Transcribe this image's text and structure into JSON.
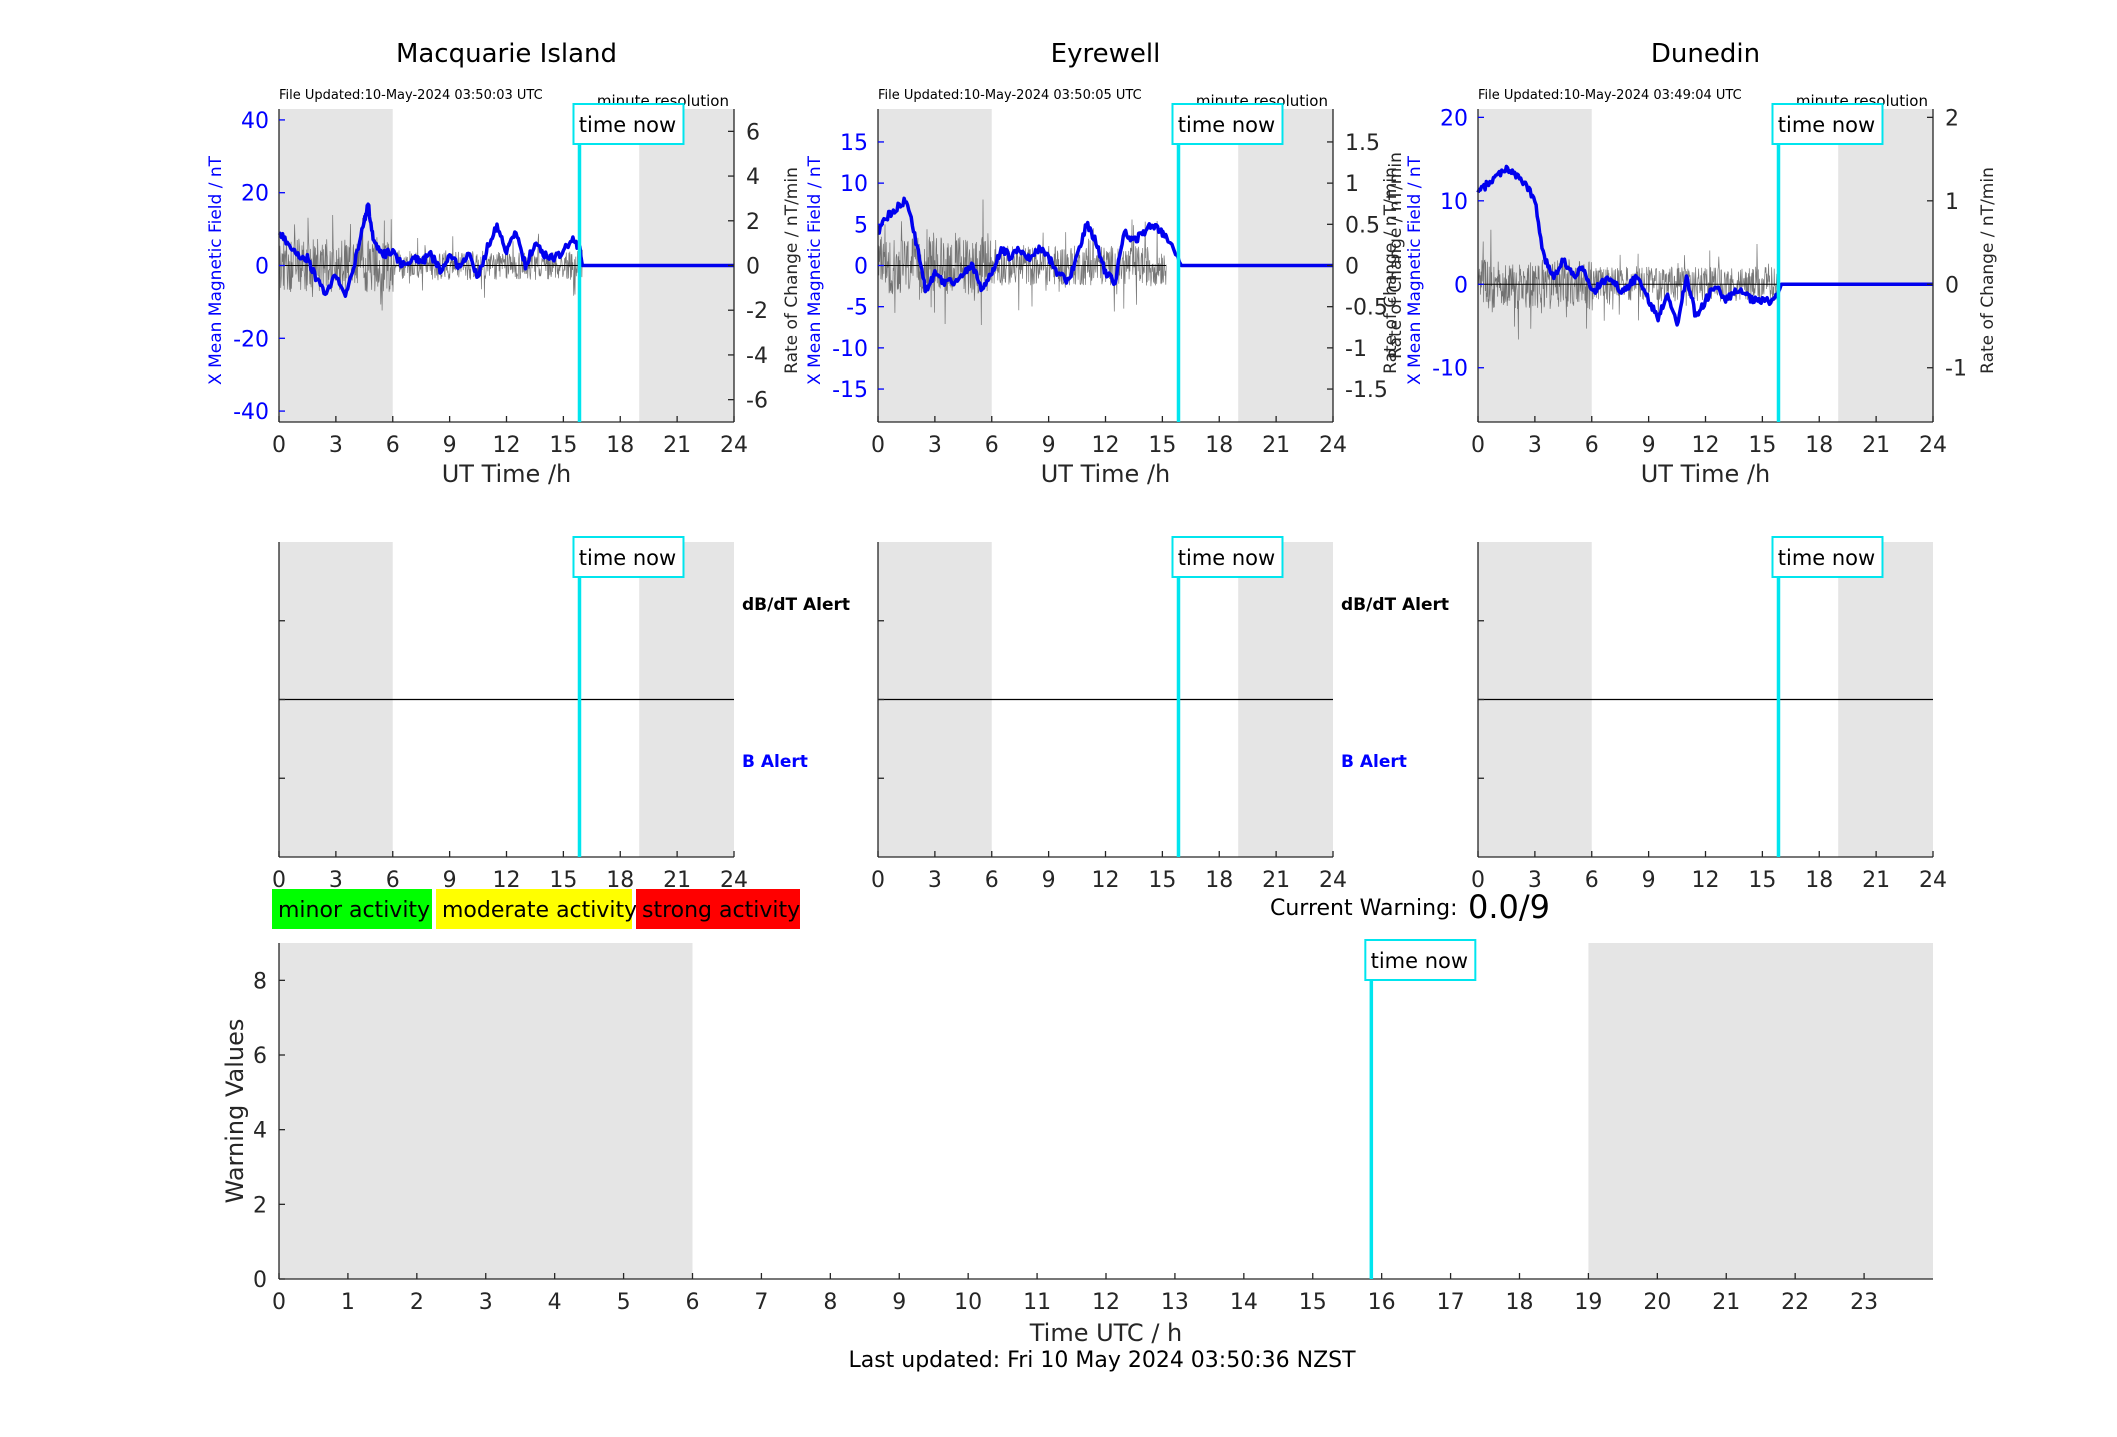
{
  "chart_data": [
    {
      "type": "line",
      "station": "Macquarie Island",
      "file_updated": "File Updated:10-May-2024 03:50:03 UTC",
      "resolution": "minute resolution",
      "xlabel": "UT Time /h",
      "ylabel_left": "X Mean Magnetic Field / nT",
      "ylabel_right": "Rate of Change / nT/min",
      "xlim": [
        0,
        24
      ],
      "xticks": [
        0,
        3,
        6,
        9,
        12,
        15,
        18,
        21,
        24
      ],
      "ylim_left": [
        -43,
        43
      ],
      "yticks_left": [
        -40,
        -20,
        0,
        20,
        40
      ],
      "ylim_right": [
        -7,
        7
      ],
      "yticks_right": [
        -6,
        -4,
        -2,
        0,
        2,
        4,
        6
      ],
      "night_shading": [
        [
          0,
          6
        ],
        [
          19,
          24
        ]
      ],
      "time_now": 15.85,
      "time_now_label": "time now",
      "series": [
        {
          "name": "X Mean Magnetic Field",
          "axis": "left",
          "x": [
            0,
            0.5,
            1,
            1.5,
            2,
            2.5,
            3,
            3.5,
            4,
            4.5,
            4.7,
            5,
            5.5,
            6,
            6.5,
            7,
            7.5,
            8,
            8.5,
            9,
            9.5,
            10,
            10.5,
            11,
            11.5,
            12,
            12.5,
            13,
            13.5,
            14,
            14.5,
            15,
            15.5,
            15.85,
            16,
            24
          ],
          "y": [
            9,
            6,
            3,
            2,
            -4,
            -8,
            -2,
            -9,
            1,
            12,
            17,
            6,
            3,
            4,
            0,
            2,
            1,
            3,
            -1,
            2,
            0,
            3,
            -3,
            5,
            11,
            4,
            9,
            0,
            6,
            3,
            2,
            4,
            7,
            5,
            0,
            0
          ]
        },
        {
          "name": "Rate of Change",
          "axis": "right",
          "style": "thin-gray-noise",
          "x0": 0,
          "x1": 16,
          "amplitude": 1.2
        }
      ]
    },
    {
      "type": "line",
      "station": "Eyrewell",
      "file_updated": "File Updated:10-May-2024 03:50:05 UTC",
      "resolution": "minute resolution",
      "xlabel": "UT Time /h",
      "ylabel_left": "X Mean Magnetic Field / nT",
      "ylabel_right": "Rate of Change / nT/min",
      "xlim": [
        0,
        24
      ],
      "xticks": [
        0,
        3,
        6,
        9,
        12,
        15,
        18,
        21,
        24
      ],
      "ylim_left": [
        -19,
        19
      ],
      "yticks_left": [
        -15,
        -10,
        -5,
        0,
        5,
        10,
        15
      ],
      "ylim_right": [
        -1.9,
        1.9
      ],
      "yticks_right": [
        -1.5,
        -1,
        -0.5,
        0,
        0.5,
        1,
        1.5
      ],
      "night_shading": [
        [
          0,
          6
        ],
        [
          19,
          24
        ]
      ],
      "time_now": 15.85,
      "time_now_label": "time now",
      "series": [
        {
          "name": "X Mean Magnetic Field",
          "axis": "left",
          "x": [
            0,
            0.5,
            1,
            1.5,
            2,
            2.5,
            3,
            3.5,
            4,
            4.5,
            5,
            5.5,
            6,
            6.5,
            7,
            7.5,
            8,
            8.5,
            9,
            9.5,
            10,
            10.5,
            11,
            11.5,
            12,
            12.5,
            13,
            13.5,
            14,
            14.5,
            15,
            15.2,
            16,
            24
          ],
          "y": [
            4,
            6,
            7,
            8,
            3,
            -3,
            -1,
            -2,
            -2,
            -1,
            0,
            -3,
            -1,
            2,
            1,
            2,
            1,
            2,
            1,
            -1,
            -2,
            1,
            5,
            3,
            -1,
            -2,
            4,
            3,
            4,
            5,
            4,
            3.5,
            0,
            0
          ]
        },
        {
          "name": "Rate of Change",
          "axis": "right",
          "style": "thin-gray-noise",
          "x0": 0,
          "x1": 15.2,
          "amplitude": 0.35
        }
      ]
    },
    {
      "type": "line",
      "station": "Dunedin",
      "file_updated": "File Updated:10-May-2024 03:49:04 UTC",
      "resolution": "minute resolution",
      "xlabel": "UT Time /h",
      "ylabel_left": "X Mean Magnetic Field / nT",
      "ylabel_right": "Rate of Change / nT/min",
      "xlim": [
        0,
        24
      ],
      "xticks": [
        0,
        3,
        6,
        9,
        12,
        15,
        18,
        21,
        24
      ],
      "ylim_left": [
        -16.5,
        21
      ],
      "yticks_left": [
        -10,
        0,
        10,
        20
      ],
      "ylim_right": [
        -1.65,
        2.1
      ],
      "yticks_right": [
        -1,
        0,
        1,
        2
      ],
      "night_shading": [
        [
          0,
          6
        ],
        [
          19,
          24
        ]
      ],
      "time_now": 15.85,
      "time_now_label": "time now",
      "series": [
        {
          "name": "X Mean Magnetic Field",
          "axis": "left",
          "x": [
            0,
            0.5,
            1,
            1.5,
            2,
            2.5,
            3,
            3.5,
            4,
            4.5,
            5,
            5.5,
            6,
            6.5,
            7,
            7.5,
            8,
            8.5,
            9,
            9.5,
            10,
            10.5,
            11,
            11.5,
            12,
            12.5,
            13,
            13.5,
            14,
            14.5,
            15,
            15.5,
            15.85,
            16,
            24
          ],
          "y": [
            11,
            12,
            13,
            14,
            13,
            12,
            10,
            3,
            1,
            3,
            1,
            2,
            -1,
            0,
            1,
            -1,
            0,
            1,
            -2,
            -4,
            -1,
            -5,
            1,
            -4,
            -2,
            0,
            -2,
            -1,
            -1,
            -2,
            -2,
            -2,
            -1,
            0,
            0
          ]
        },
        {
          "name": "Rate of Change",
          "axis": "right",
          "style": "thin-gray-noise",
          "x0": 0,
          "x1": 15.85,
          "amplitude": 0.3
        }
      ]
    },
    {
      "type": "line",
      "station": "Macquarie Island alerts",
      "xlim": [
        0,
        24
      ],
      "xticks": [
        0,
        3,
        6,
        9,
        12,
        15,
        18,
        21,
        24
      ],
      "night_shading": [
        [
          0,
          6
        ],
        [
          19,
          24
        ]
      ],
      "time_now": 15.85,
      "time_now_label": "time now",
      "labels": [
        "dB/dT Alert",
        "B Alert"
      ]
    },
    {
      "type": "line",
      "station": "Eyrewell alerts",
      "xlim": [
        0,
        24
      ],
      "xticks": [
        0,
        3,
        6,
        9,
        12,
        15,
        18,
        21,
        24
      ],
      "night_shading": [
        [
          0,
          6
        ],
        [
          19,
          24
        ]
      ],
      "time_now": 15.85,
      "time_now_label": "time now",
      "labels": [
        "dB/dT Alert",
        "B Alert"
      ]
    },
    {
      "type": "line",
      "station": "Dunedin alerts",
      "xlim": [
        0,
        24
      ],
      "xticks": [
        0,
        3,
        6,
        9,
        12,
        15,
        18,
        21,
        24
      ],
      "night_shading": [
        [
          0,
          6
        ],
        [
          19,
          24
        ]
      ],
      "time_now": 15.85,
      "time_now_label": "time now",
      "labels": []
    },
    {
      "type": "bar",
      "xlabel": "Time UTC / h",
      "ylabel": "Warning Values",
      "xlim": [
        0,
        24
      ],
      "xticks": [
        0,
        1,
        2,
        3,
        4,
        5,
        6,
        7,
        8,
        9,
        10,
        11,
        12,
        13,
        14,
        15,
        16,
        17,
        18,
        19,
        20,
        21,
        22,
        23
      ],
      "ylim": [
        0,
        9
      ],
      "yticks": [
        0,
        2,
        4,
        6,
        8
      ],
      "night_shading": [
        [
          0,
          6
        ],
        [
          19,
          24
        ]
      ],
      "time_now": 15.85,
      "time_now_label": "time now",
      "values": []
    }
  ],
  "legend": {
    "items": [
      {
        "label": "minor activity",
        "color": "#00ff00"
      },
      {
        "label": "moderate activity",
        "color": "#ffff00"
      },
      {
        "label": "strong activity",
        "color": "#ff0000"
      }
    ]
  },
  "warning": {
    "label": "Current Warning:",
    "value": "0.0/9"
  },
  "footer": {
    "last_updated": "Last updated: Fri 10 May 2024 03:50:36 NZST"
  },
  "colors": {
    "field_line": "#0000ee",
    "rate_line": "#555555",
    "time_now": "#00e5ee",
    "night": "#e5e5e5"
  }
}
